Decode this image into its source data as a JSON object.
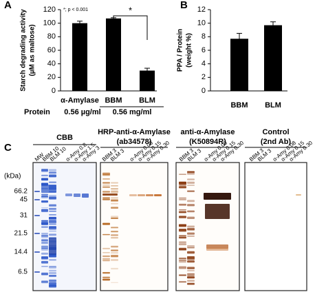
{
  "chart_data": [
    {
      "type": "bar",
      "label": "A",
      "ylabel": "Starch degrading activity",
      "ylabel2": "(µM as maltose)",
      "categories": [
        "α-Amylase",
        "BBM",
        "BLM"
      ],
      "values": [
        100,
        107,
        30
      ],
      "errors": [
        3,
        1,
        3.5
      ],
      "color": "#000000",
      "ylim": [
        0,
        120
      ],
      "yticks": [
        0,
        20,
        40,
        60,
        80,
        100,
        120
      ],
      "note": "*; p < 0.001",
      "significance": "*",
      "protein_label": "Protein",
      "protein_values": [
        "0.56 µg/ml",
        "0.56 mg/ml"
      ]
    },
    {
      "type": "bar",
      "label": "B",
      "ylabel": "PPA / Protein",
      "ylabel2": "(weight %)",
      "categories": [
        "BBM",
        "BLM"
      ],
      "values": [
        7.7,
        9.7
      ],
      "errors": [
        0.8,
        0.5
      ],
      "color": "#000000",
      "ylim": [
        0,
        12
      ],
      "yticks": [
        0,
        2,
        4,
        6,
        8,
        10,
        12
      ]
    }
  ],
  "gel": {
    "label": "C",
    "unit": "(kDa)",
    "markers": [
      "66.2",
      "45",
      "31",
      "21.5",
      "14.4",
      "6.5"
    ],
    "panels": [
      {
        "title": "CBB",
        "lanes": [
          "MW",
          "BBM 10",
          "BLM 10",
          "α-Amy 0.8",
          "α-Amy 1.5",
          "α-Amy 3"
        ]
      },
      {
        "title": "HRP-anti-α-Amylase",
        "subtitle": "(ab34578)",
        "lanes": [
          "BBM 3",
          "BLM 3",
          "α-Amy 0.08",
          "α-Amy 0.15",
          "α-Amy 0.30"
        ]
      },
      {
        "title": "anti-α-Amylase",
        "subtitle": "(K50894R)",
        "lanes": [
          "BBM 3",
          "BLM 3",
          "α-Amy 0.08",
          "α-Amy 0.15",
          "α-Amy 0.30"
        ]
      },
      {
        "title": "Control",
        "subtitle": "(2nd Ab)",
        "lanes": [
          "BBM 3",
          "BLM 3",
          "α-Amy 0.08",
          "α-Amy 0.15",
          "α-Amy 0.30"
        ]
      }
    ]
  }
}
